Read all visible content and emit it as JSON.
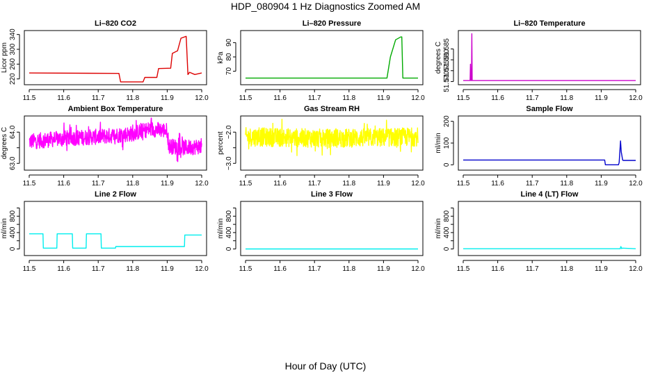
{
  "figure": {
    "title": "HDP_080904  1 Hz Diagnostics Zoomed AM",
    "xlabel": "Hour of Day (UTC)"
  },
  "chart_data": [
    {
      "type": "line",
      "title": "Li–820 CO2",
      "ylabel": "Licor ppm",
      "color": "#dd0000",
      "xlim": [
        11.5,
        12.0
      ],
      "ylim": [
        210,
        345
      ],
      "xticks": [
        11.5,
        11.6,
        11.7,
        11.8,
        11.9,
        12.0
      ],
      "yticks": [
        220,
        260,
        300,
        340
      ],
      "yticklabels": [
        "220",
        "260",
        "300",
        "340"
      ],
      "series": [
        {
          "x": [
            11.5,
            11.76,
            11.765,
            11.83,
            11.835,
            11.87,
            11.875,
            11.91,
            11.915,
            11.93,
            11.94,
            11.955,
            11.96,
            11.965,
            11.98,
            12.0
          ],
          "y": [
            236,
            235,
            212,
            212,
            224,
            224,
            248,
            249,
            289,
            296,
            330,
            335,
            232,
            238,
            232,
            236
          ]
        }
      ]
    },
    {
      "type": "line",
      "title": "Li–820 Pressure",
      "ylabel": "kPa",
      "color": "#00aa00",
      "xlim": [
        11.5,
        12.0
      ],
      "ylim": [
        62,
        97
      ],
      "xticks": [
        11.5,
        11.6,
        11.7,
        11.8,
        11.9,
        12.0
      ],
      "yticks": [
        70,
        80,
        90
      ],
      "yticklabels": [
        "70",
        "80",
        "90"
      ],
      "series": [
        {
          "x": [
            11.5,
            11.91,
            11.92,
            11.935,
            11.95,
            11.953,
            11.956,
            12.0
          ],
          "y": [
            65.2,
            65.2,
            80,
            92,
            94,
            94,
            65.2,
            65.2
          ]
        }
      ]
    },
    {
      "type": "line",
      "title": "Li–820 Temperature",
      "ylabel": "degrees C",
      "color": "#cc00cc",
      "xlim": [
        11.5,
        12.0
      ],
      "ylim": [
        51.5695,
        51.5925
      ],
      "xticks": [
        11.5,
        11.6,
        11.7,
        11.8,
        11.9,
        12.0
      ],
      "yticks": [
        51.57,
        51.575,
        51.58,
        51.585
      ],
      "yticklabels": [
        "51.570",
        "51.575",
        "51.580",
        "51.585"
      ],
      "series": [
        {
          "x": [
            11.5,
            11.52,
            11.521,
            11.522,
            11.524,
            11.525,
            11.526,
            12.0
          ],
          "y": [
            51.5705,
            51.5705,
            51.578,
            51.5705,
            51.5705,
            51.592,
            51.5705,
            51.5705
          ]
        }
      ]
    },
    {
      "type": "line",
      "title": "Ambient Box Temperature",
      "ylabel": "degrees C",
      "color": "#ff00ff",
      "xlim": [
        11.5,
        12.0
      ],
      "ylim": [
        62.85,
        64.45
      ],
      "xticks": [
        11.5,
        11.6,
        11.7,
        11.8,
        11.9,
        12.0
      ],
      "yticks": [
        63.0,
        63.5,
        64.0
      ],
      "yticklabels": [
        "63.0",
        "",
        "64.0"
      ],
      "series": [
        {
          "x": [
            11.5,
            11.6,
            11.7,
            11.8,
            11.85,
            11.9,
            11.905,
            11.95,
            12.0
          ],
          "y": [
            63.7,
            63.8,
            63.85,
            63.95,
            64.1,
            64.05,
            63.55,
            63.5,
            63.55
          ]
        }
      ],
      "noise_amplitude": 0.25
    },
    {
      "type": "line",
      "title": "Gas Stream RH",
      "ylabel": "percent",
      "color": "#ffff00",
      "xlim": [
        11.5,
        12.0
      ],
      "ylim": [
        -3.15,
        -1.55
      ],
      "xticks": [
        11.5,
        11.6,
        11.7,
        11.8,
        11.9,
        12.0
      ],
      "yticks": [
        -3.0,
        -2.5,
        -2.0
      ],
      "yticklabels": [
        "−3.0",
        "",
        "−2.0"
      ],
      "series": [
        {
          "x": [
            11.5,
            11.75,
            12.0
          ],
          "y": [
            -2.15,
            -2.2,
            -2.15
          ]
        }
      ],
      "noise_amplitude": 0.3
    },
    {
      "type": "line",
      "title": "Sample Flow",
      "ylabel": "ml/min",
      "color": "#0000cc",
      "xlim": [
        11.5,
        12.0
      ],
      "ylim": [
        -15,
        215
      ],
      "xticks": [
        11.5,
        11.6,
        11.7,
        11.8,
        11.9,
        12.0
      ],
      "yticks": [
        0,
        100,
        200
      ],
      "yticklabels": [
        "0",
        "100",
        "200"
      ],
      "series": [
        {
          "x": [
            11.5,
            11.91,
            11.912,
            11.95,
            11.952,
            11.956,
            11.958,
            11.962,
            11.964,
            12.0
          ],
          "y": [
            22,
            22,
            0,
            0,
            10,
            110,
            60,
            22,
            20,
            20
          ]
        }
      ]
    },
    {
      "type": "line",
      "title": "Line 2 Flow",
      "ylabel": "ml/min",
      "color": "#00eeee",
      "xlim": [
        11.5,
        12.0
      ],
      "ylim": [
        -110,
        1110
      ],
      "xticks": [
        11.5,
        11.6,
        11.7,
        11.8,
        11.9,
        12.0
      ],
      "yticks": [
        0,
        200,
        400,
        600,
        800,
        1000
      ],
      "yticklabels": [
        "0",
        "",
        "400",
        "",
        "800",
        ""
      ],
      "series": [
        {
          "x": [
            11.5,
            11.54,
            11.541,
            11.58,
            11.581,
            11.625,
            11.626,
            11.665,
            11.666,
            11.708,
            11.709,
            11.75,
            11.751,
            11.95,
            11.951,
            12.0
          ],
          "y": [
            370,
            370,
            20,
            20,
            370,
            370,
            20,
            20,
            370,
            370,
            20,
            20,
            60,
            60,
            340,
            340
          ]
        }
      ]
    },
    {
      "type": "line",
      "title": "Line 3 Flow",
      "ylabel": "ml/min",
      "color": "#00eeee",
      "xlim": [
        11.5,
        12.0
      ],
      "ylim": [
        -110,
        1110
      ],
      "xticks": [
        11.5,
        11.6,
        11.7,
        11.8,
        11.9,
        12.0
      ],
      "yticks": [
        0,
        200,
        400,
        600,
        800,
        1000
      ],
      "yticklabels": [
        "0",
        "",
        "400",
        "",
        "800",
        ""
      ],
      "series": [
        {
          "x": [
            11.5,
            12.0
          ],
          "y": [
            0,
            0
          ]
        }
      ]
    },
    {
      "type": "line",
      "title": "Line 4 (LT) Flow",
      "ylabel": "ml/min",
      "color": "#00eeee",
      "xlim": [
        11.5,
        12.0
      ],
      "ylim": [
        -110,
        1110
      ],
      "xticks": [
        11.5,
        11.6,
        11.7,
        11.8,
        11.9,
        12.0
      ],
      "yticks": [
        0,
        200,
        400,
        600,
        800,
        1000
      ],
      "yticklabels": [
        "0",
        "",
        "400",
        "",
        "800",
        ""
      ],
      "series": [
        {
          "x": [
            11.5,
            11.955,
            11.957,
            11.959,
            11.961,
            12.0
          ],
          "y": [
            5,
            5,
            60,
            10,
            20,
            5
          ]
        }
      ]
    }
  ]
}
